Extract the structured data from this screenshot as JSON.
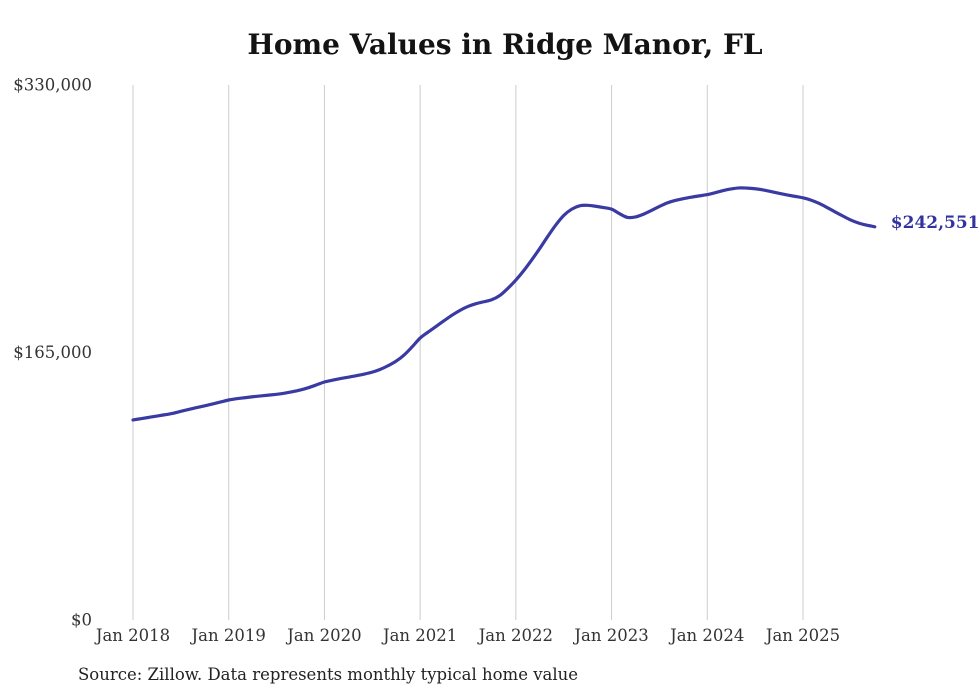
{
  "chart_data": {
    "type": "line",
    "title": "Home Values in Ridge Manor, FL",
    "source_note": "Source: Zillow. Data represents monthly typical home value",
    "end_label": "$242,551",
    "legend": "none",
    "grid": "vertical-only",
    "xlabel": "",
    "ylabel": "",
    "ylim": [
      0,
      330000
    ],
    "y_ticks": [
      0,
      165000,
      330000
    ],
    "y_tick_labels": [
      "$0",
      "$165,000",
      "$330,000"
    ],
    "x_tick_labels": [
      "Jan 2018",
      "Jan 2019",
      "Jan 2020",
      "Jan 2021",
      "Jan 2022",
      "Jan 2023",
      "Jan 2024",
      "Jan 2025"
    ],
    "colors": {
      "line": "#3a3aa3",
      "end_label": "#3333a0",
      "grid": "#cccccc",
      "title": "#131313",
      "axis_label": "#333333",
      "source": "#222222"
    },
    "x": [
      "2018-01",
      "2018-02",
      "2018-03",
      "2018-04",
      "2018-05",
      "2018-06",
      "2018-07",
      "2018-08",
      "2018-09",
      "2018-10",
      "2018-11",
      "2018-12",
      "2019-01",
      "2019-02",
      "2019-03",
      "2019-04",
      "2019-05",
      "2019-06",
      "2019-07",
      "2019-08",
      "2019-09",
      "2019-10",
      "2019-11",
      "2019-12",
      "2020-01",
      "2020-02",
      "2020-03",
      "2020-04",
      "2020-05",
      "2020-06",
      "2020-07",
      "2020-08",
      "2020-09",
      "2020-10",
      "2020-11",
      "2020-12",
      "2021-01",
      "2021-02",
      "2021-03",
      "2021-04",
      "2021-05",
      "2021-06",
      "2021-07",
      "2021-08",
      "2021-09",
      "2021-10",
      "2021-11",
      "2021-12",
      "2022-01",
      "2022-02",
      "2022-03",
      "2022-04",
      "2022-05",
      "2022-06",
      "2022-07",
      "2022-08",
      "2022-09",
      "2022-10",
      "2022-11",
      "2022-12",
      "2023-01",
      "2023-02",
      "2023-03",
      "2023-04",
      "2023-05",
      "2023-06",
      "2023-07",
      "2023-08",
      "2023-09",
      "2023-10",
      "2023-11",
      "2023-12",
      "2024-01",
      "2024-02",
      "2024-03",
      "2024-04",
      "2024-05",
      "2024-06",
      "2024-07",
      "2024-08",
      "2024-09",
      "2024-10",
      "2024-11",
      "2024-12",
      "2025-01",
      "2025-02",
      "2025-03",
      "2025-04",
      "2025-05",
      "2025-06",
      "2025-07",
      "2025-08",
      "2025-09",
      "2025-10"
    ],
    "values": [
      123400,
      124200,
      125000,
      125800,
      126600,
      127500,
      128700,
      129900,
      131000,
      132100,
      133300,
      134500,
      135700,
      136500,
      137100,
      137700,
      138200,
      138700,
      139200,
      139900,
      140800,
      141900,
      143300,
      145000,
      146800,
      147900,
      148900,
      149800,
      150700,
      151700,
      152900,
      154600,
      156900,
      159700,
      163500,
      168500,
      173900,
      177600,
      181100,
      184600,
      188000,
      191000,
      193400,
      195100,
      196300,
      197600,
      200200,
      204600,
      209700,
      215600,
      222200,
      229200,
      236600,
      243600,
      249500,
      253400,
      255500,
      255800,
      255200,
      254400,
      253400,
      250600,
      248300,
      248600,
      250300,
      252600,
      255100,
      257300,
      258800,
      259900,
      260800,
      261600,
      262400,
      263600,
      264900,
      265900,
      266500,
      266400,
      266000,
      265300,
      264300,
      263200,
      262200,
      261300,
      260400,
      259000,
      257000,
      254500,
      251800,
      249200,
      246700,
      244800,
      243500,
      242551
    ]
  }
}
